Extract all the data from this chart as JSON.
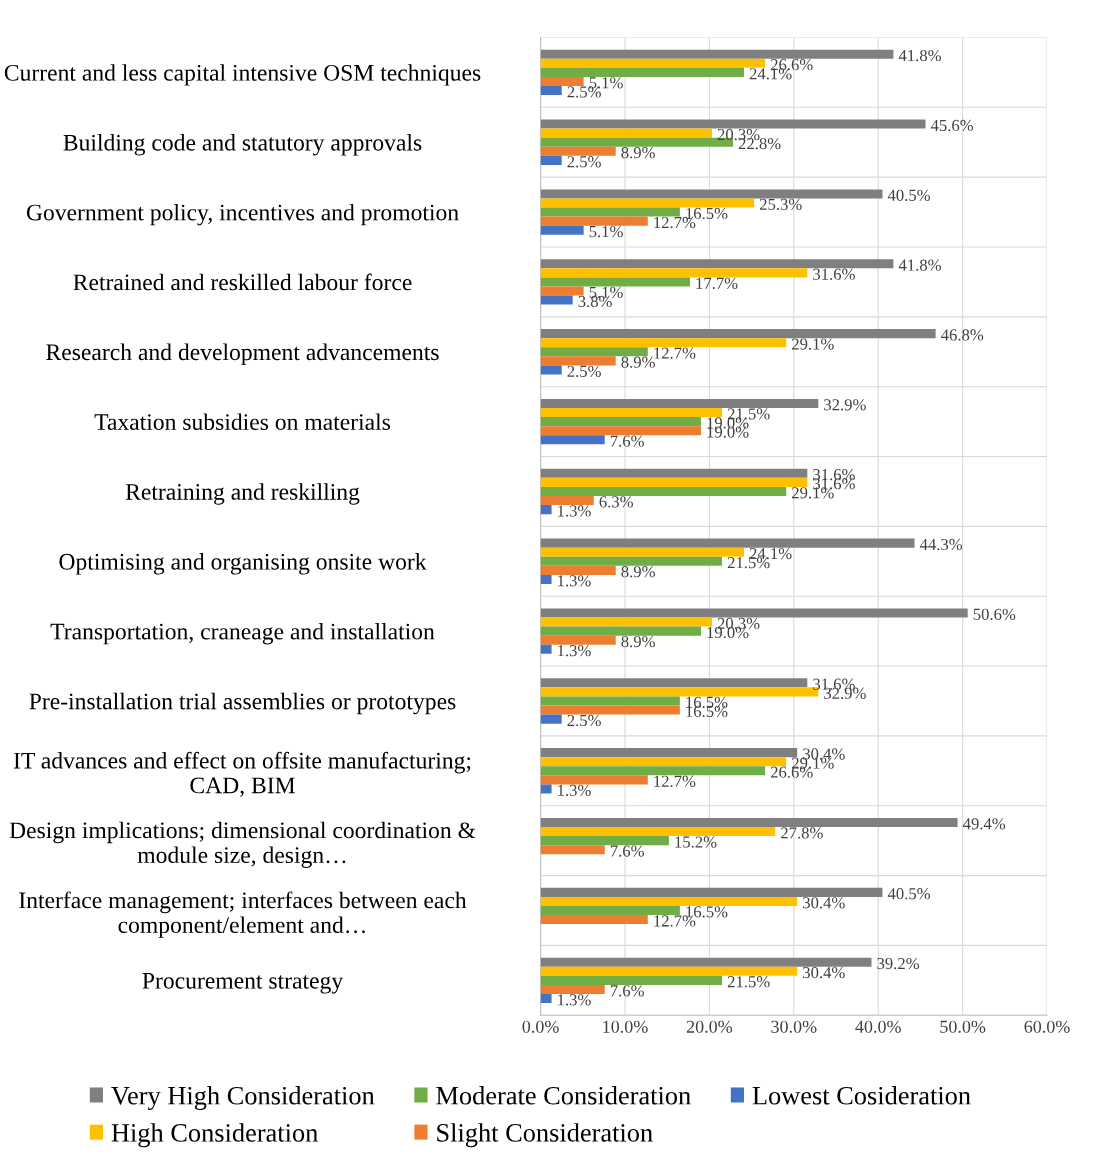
{
  "chart_data": {
    "type": "bar",
    "orientation": "horizontal",
    "categories": [
      "Current and less capital intensive OSM techniques",
      "Building code and statutory approvals",
      "Government policy, incentives and promotion",
      "Retrained and reskilled labour force",
      "Research and development advancements",
      "Taxation subsidies on materials",
      "Retraining and reskilling",
      "Optimising and organising onsite work",
      "Transportation, craneage and installation",
      "Pre-installation trial assemblies or prototypes",
      "IT advances and effect on offsite manufacturing; CAD, BIM",
      "Design implications; dimensional coordination & module size, design…",
      "Interface management; interfaces between each component/element and…",
      "Procurement strategy"
    ],
    "series": [
      {
        "name": "Very High Consideration",
        "color": "#7f7f7f",
        "values": [
          41.8,
          45.6,
          40.5,
          41.8,
          46.8,
          32.9,
          31.6,
          44.3,
          50.6,
          31.6,
          30.4,
          49.4,
          40.5,
          39.2
        ],
        "value_labels": [
          "41.8%",
          "45.6%",
          "40.5%",
          "41.8%",
          "46.8%",
          "32.9%",
          "31.6%",
          "44.3%",
          "50.6%",
          "31.6%",
          "30.4%",
          "49.4%",
          "40.5%",
          "39.2%"
        ]
      },
      {
        "name": "High Consideration",
        "color": "#ffc000",
        "values": [
          26.6,
          20.3,
          25.3,
          31.6,
          29.1,
          21.5,
          31.6,
          24.1,
          20.3,
          32.9,
          29.1,
          27.8,
          30.4,
          30.4
        ],
        "value_labels": [
          "26.6%",
          "20.3%",
          "25.3%",
          "31.6%",
          "29.1%",
          "21.5%",
          "31.6%",
          "24.1%",
          "20.3%",
          "32.9%",
          "29.1%",
          "27.8%",
          "30.4%",
          "30.4%"
        ]
      },
      {
        "name": "Moderate Consideration",
        "color": "#70ad47",
        "values": [
          24.1,
          22.8,
          16.5,
          17.7,
          12.7,
          19.0,
          29.1,
          21.5,
          19.0,
          16.5,
          26.6,
          15.2,
          16.5,
          21.5
        ],
        "value_labels": [
          "24.1%",
          "22.8%",
          "16.5%",
          "17.7%",
          "12.7%",
          "19.0%",
          "29.1%",
          "21.5%",
          "19.0%",
          "16.5%",
          "26.6%",
          "15.2%",
          "16.5%",
          "21.5%"
        ]
      },
      {
        "name": "Slight Consideration",
        "color": "#ed7d31",
        "values": [
          5.1,
          8.9,
          12.7,
          5.1,
          8.9,
          19.0,
          6.3,
          8.9,
          8.9,
          16.5,
          12.7,
          7.6,
          12.7,
          7.6
        ],
        "value_labels": [
          "5.1%",
          "8.9%",
          "12.7%",
          "5.1%",
          "8.9%",
          "19.0%",
          "6.3%",
          "8.9%",
          "8.9%",
          "16.5%",
          "12.7%",
          "7.6%",
          "12.7%",
          "7.6%"
        ]
      },
      {
        "name": "Lowest Cosideration",
        "color": "#4472c4",
        "values": [
          2.5,
          2.5,
          5.1,
          3.8,
          2.5,
          7.6,
          1.3,
          1.3,
          1.3,
          2.5,
          1.3,
          null,
          null,
          1.3
        ],
        "value_labels": [
          "2.5%",
          "2.5%",
          "5.1%",
          "3.8%",
          "2.5%",
          "7.6%",
          "1.3%",
          "1.3%",
          "1.3%",
          "2.5%",
          "1.3%",
          null,
          null,
          "1.3%"
        ]
      }
    ],
    "xlim": [
      0,
      60
    ],
    "xticks": [
      {
        "value": 0,
        "label": "0.0%"
      },
      {
        "value": 10,
        "label": "10.0%"
      },
      {
        "value": 20,
        "label": "20.0%"
      },
      {
        "value": 30,
        "label": "30.0%"
      },
      {
        "value": 40,
        "label": "40.0%"
      },
      {
        "value": 50,
        "label": "50.0%"
      },
      {
        "value": 60,
        "label": "60.0%"
      }
    ],
    "grid": "x",
    "legend": "bottom"
  }
}
